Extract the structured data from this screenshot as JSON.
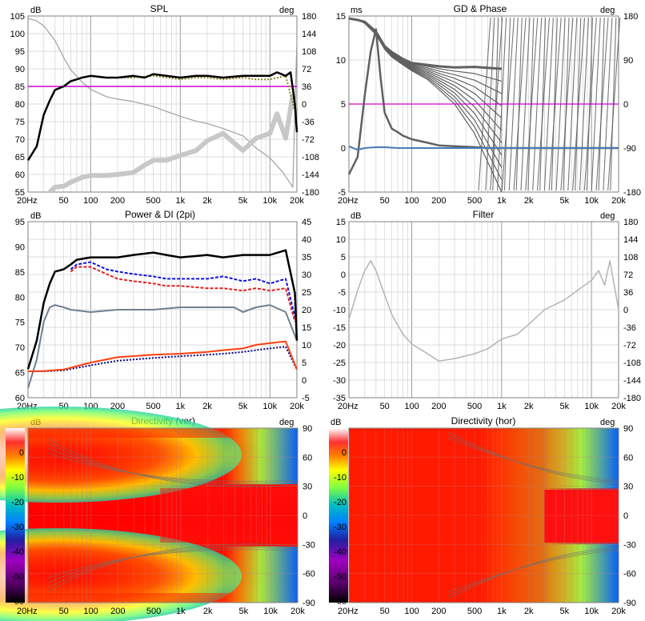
{
  "panels": [
    {
      "id": "spl",
      "title": "SPL",
      "left_unit": "dB",
      "right_unit": "deg",
      "left_ticks": [
        "105",
        "100",
        "95",
        "90",
        "85",
        "80",
        "75",
        "70",
        "65",
        "60",
        "55"
      ],
      "right_ticks": [
        "180",
        "144",
        "108",
        "72",
        "36",
        "0",
        "-36",
        "-72",
        "-108",
        "-144",
        "-180"
      ],
      "x_ticks": [
        "20Hz",
        "50",
        "100",
        "200",
        "500",
        "1k",
        "2k",
        "5k",
        "10k",
        "20k"
      ]
    },
    {
      "id": "gd-phase",
      "title": "GD & Phase",
      "left_unit": "ms",
      "right_unit": "deg",
      "left_ticks": [
        "15",
        "10",
        "5",
        "0",
        "-5"
      ],
      "right_ticks": [
        "180",
        "90",
        "0",
        "-90",
        "-180"
      ],
      "x_ticks": [
        "20Hz",
        "50",
        "100",
        "200",
        "500",
        "1k",
        "2k",
        "5k",
        "10k",
        "20k"
      ]
    },
    {
      "id": "power-di",
      "title": "Power & DI (2pi)",
      "left_unit": "dB",
      "right_unit": "",
      "left_ticks": [
        "95",
        "90",
        "85",
        "80",
        "75",
        "70",
        "65",
        "60"
      ],
      "right_ticks": [
        "45",
        "40",
        "35",
        "30",
        "25",
        "20",
        "15",
        "10",
        "5",
        "0",
        "-5"
      ],
      "x_ticks": [
        "20Hz",
        "50",
        "100",
        "200",
        "500",
        "1k",
        "2k",
        "5k",
        "10k",
        "20k"
      ]
    },
    {
      "id": "filter",
      "title": "Filter",
      "left_unit": "dB",
      "right_unit": "deg",
      "left_ticks": [
        "15",
        "10",
        "5",
        "0",
        "-5",
        "-10",
        "-15",
        "-20",
        "-25",
        "-30",
        "-35"
      ],
      "right_ticks": [
        "180",
        "144",
        "108",
        "72",
        "36",
        "0",
        "-36",
        "-72",
        "-108",
        "-144",
        "-180"
      ],
      "x_ticks": [
        "20Hz",
        "50",
        "100",
        "200",
        "500",
        "1k",
        "2k",
        "5k",
        "10k",
        "20k"
      ]
    },
    {
      "id": "directivity-ver",
      "title": "Directivity (ver)",
      "left_unit": "dB",
      "right_unit": "deg",
      "right_ticks": [
        "90",
        "60",
        "30",
        "0",
        "-30",
        "-60",
        "-90"
      ],
      "x_ticks": [
        "20Hz",
        "50",
        "100",
        "200",
        "500",
        "1k",
        "2k",
        "5k",
        "10k",
        "20k"
      ]
    },
    {
      "id": "directivity-hor",
      "title": "Directivity (hor)",
      "left_unit": "dB",
      "right_unit": "deg",
      "right_ticks": [
        "90",
        "60",
        "30",
        "0",
        "-30",
        "-60",
        "-90"
      ],
      "x_ticks": [
        "20Hz",
        "50",
        "100",
        "200",
        "500",
        "1k",
        "2k",
        "5k",
        "10k",
        "20k"
      ]
    }
  ],
  "colorbar": {
    "ticks": [
      "0",
      "-10",
      "-20",
      "-30",
      "-40",
      "-50",
      "-60"
    ]
  },
  "colors": {
    "spl": "#000000",
    "phase": "#a0a0a0",
    "target": "#d000d0",
    "excess_phase": "#c8c8c8",
    "group_delay": "#606060",
    "gd_flat": "#4a7ab8",
    "listening_window": "#1010e0",
    "early_reflections": "#e02020",
    "sound_power_di": "#ff4010",
    "early_reflections_di": "#000080",
    "di_grey": "#708090",
    "filter": "#b4b4b4"
  },
  "chart_data": [
    {
      "type": "line",
      "title": "SPL",
      "xscale": "log",
      "xlim": [
        20,
        20000
      ],
      "ylabel": "dB",
      "ylim": [
        55,
        105
      ],
      "y2label": "deg",
      "y2lim": [
        -180,
        180
      ],
      "series": [
        {
          "axis": "left",
          "x": [
            20,
            25,
            30,
            35,
            40,
            50,
            60,
            70,
            80,
            100,
            150,
            200,
            300,
            400,
            500,
            700,
            1000,
            1500,
            2000,
            3000,
            5000,
            7000,
            10000,
            12000,
            15000,
            17000,
            19000,
            20000
          ],
          "y": [
            64,
            68,
            77,
            81,
            84,
            85,
            86.5,
            87,
            87.5,
            88,
            87.5,
            87.5,
            88,
            87.5,
            88.5,
            88,
            87.5,
            88,
            88,
            87.5,
            88,
            88,
            88,
            89,
            88,
            89,
            80,
            72
          ]
        },
        {
          "axis": "left",
          "x": [
            20,
            20000
          ],
          "y": [
            85,
            85
          ]
        },
        {
          "axis": "left",
          "x": [
            200,
            300,
            500,
            700,
            1000,
            1500,
            2000,
            3000,
            5000,
            7000,
            10000,
            15000,
            19000
          ],
          "y": [
            87.5,
            87.5,
            88,
            87.5,
            87,
            87.5,
            87.5,
            87,
            87.5,
            87,
            87,
            88,
            78
          ]
        },
        {
          "axis": "right",
          "x": [
            20,
            25,
            30,
            40,
            50,
            60,
            80,
            100,
            150,
            200,
            300,
            500,
            700,
            1000,
            1500,
            2000,
            3000,
            5000,
            7000,
            10000,
            14000,
            18000,
            20000
          ],
          "y": [
            175,
            170,
            160,
            130,
            95,
            70,
            45,
            30,
            15,
            10,
            5,
            -5,
            -15,
            -25,
            -35,
            -40,
            -50,
            -65,
            -90,
            -110,
            -140,
            -170,
            130
          ]
        },
        {
          "axis": "right",
          "x": [
            35,
            40,
            50,
            60,
            80,
            100,
            150,
            200,
            300,
            400,
            500,
            700,
            1000,
            1500,
            2000,
            3000,
            5000,
            7000,
            10000,
            12000,
            15000,
            18000
          ],
          "y": [
            -180,
            -170,
            -168,
            -160,
            -150,
            -146,
            -146,
            -144,
            -140,
            -125,
            -115,
            -115,
            -105,
            -95,
            -75,
            -60,
            -95,
            -70,
            -60,
            -20,
            -70,
            20
          ]
        }
      ]
    },
    {
      "type": "line",
      "title": "GD & Phase",
      "xscale": "log",
      "xlim": [
        20,
        20000
      ],
      "ylabel": "ms",
      "ylim": [
        -5,
        15
      ],
      "y2label": "deg",
      "y2lim": [
        -180,
        180
      ],
      "series": [
        {
          "axis": "left",
          "x": [
            20,
            25,
            30,
            35,
            40,
            45,
            50,
            60,
            70,
            80,
            100,
            150,
            200,
            300,
            500,
            700,
            1000,
            1500,
            2000,
            3000,
            5000,
            7000,
            10000,
            15000,
            20000
          ],
          "y": [
            -3,
            -1,
            6,
            11,
            13.5,
            8,
            4,
            2.2,
            1.8,
            1.4,
            1,
            0.6,
            0.3,
            0.2,
            0.1,
            0,
            0,
            0,
            0,
            0,
            0,
            0,
            0,
            0,
            0
          ]
        },
        {
          "axis": "left",
          "x": [
            20,
            25,
            30,
            40,
            50,
            70,
            100,
            200,
            500,
            1000,
            2000,
            5000,
            10000,
            20000
          ],
          "y": [
            0.2,
            -0.2,
            0,
            0.1,
            0.1,
            0,
            0,
            0,
            0,
            0,
            0,
            0,
            0,
            0
          ]
        },
        {
          "axis": "left",
          "x": [
            20,
            20000
          ],
          "y": [
            5,
            5
          ]
        },
        {
          "axis": "right",
          "x": [
            20,
            25,
            30,
            40,
            50,
            60,
            80,
            100,
            150,
            200,
            300,
            500,
            1000
          ],
          "y": [
            175,
            172,
            168,
            148,
            118,
            106,
            92,
            84,
            80,
            77,
            75,
            76,
            72
          ]
        },
        {
          "axis": "right",
          "x": [
            20,
            25,
            30,
            40,
            50,
            60,
            80,
            100,
            150,
            200,
            300,
            500,
            1000
          ],
          "y": [
            175,
            172,
            165,
            142,
            112,
            96,
            80,
            68,
            50,
            30,
            0,
            -60,
            -180
          ]
        }
      ]
    },
    {
      "type": "line",
      "title": "Power & DI (2pi)",
      "xscale": "log",
      "xlim": [
        20,
        20000
      ],
      "ylabel": "dB",
      "ylim": [
        58,
        95
      ],
      "y2lim": [
        -5,
        45
      ],
      "series": [
        {
          "axis": "left",
          "x": [
            20,
            25,
            30,
            35,
            40,
            50,
            60,
            70,
            100,
            150,
            200,
            300,
            500,
            700,
            1000,
            2000,
            3000,
            5000,
            10000,
            15000,
            19000,
            20000
          ],
          "y": [
            64,
            70,
            78,
            82,
            84.5,
            85,
            86,
            87,
            87.5,
            87.5,
            87.5,
            88,
            88.5,
            88,
            87.5,
            88,
            87.5,
            88,
            88,
            89,
            80,
            70
          ]
        },
        {
          "axis": "left",
          "x": [
            60,
            70,
            100,
            150,
            200,
            300,
            500,
            700,
            1000,
            2000,
            3000,
            5000,
            7000,
            10000,
            15000,
            19000
          ],
          "y": [
            85,
            86,
            86.5,
            85,
            84.5,
            84,
            83.5,
            83,
            83,
            83,
            83.5,
            82.5,
            83,
            82,
            83,
            75
          ]
        },
        {
          "axis": "left",
          "x": [
            60,
            70,
            100,
            150,
            200,
            300,
            500,
            700,
            1000,
            2000,
            3000,
            5000,
            7000,
            10000,
            15000,
            19000
          ],
          "y": [
            84.5,
            85.5,
            85.5,
            84,
            83,
            82.5,
            82,
            81.5,
            81.5,
            81,
            81,
            80.5,
            81,
            80.5,
            81,
            74
          ]
        },
        {
          "axis": "left",
          "x": [
            20,
            25,
            30,
            35,
            40,
            50,
            60,
            100,
            200,
            500,
            1000,
            2000,
            4000,
            5000,
            7000,
            10000,
            15000,
            20000
          ],
          "y": [
            60,
            66,
            74,
            77,
            77.5,
            77,
            76.5,
            76,
            76.5,
            76.5,
            77,
            77,
            77,
            76,
            77,
            77.5,
            76,
            70
          ]
        },
        {
          "axis": "right",
          "x": [
            20,
            30,
            50,
            100,
            200,
            500,
            1000,
            2000,
            3000,
            5000,
            7000,
            10000,
            15000,
            20000
          ],
          "y": [
            2.5,
            2.6,
            3,
            5,
            6.5,
            7.2,
            7.5,
            8,
            8.5,
            9,
            10,
            10.5,
            11,
            3
          ]
        },
        {
          "axis": "right",
          "x": [
            20,
            30,
            50,
            100,
            200,
            500,
            1000,
            2000,
            3000,
            5000,
            7000,
            10000,
            15000,
            20000
          ],
          "y": [
            2.5,
            2.5,
            2.8,
            4.2,
            5.5,
            6.3,
            6.8,
            7.2,
            7.5,
            8,
            8.5,
            9,
            9.5,
            3
          ]
        }
      ]
    },
    {
      "type": "line",
      "title": "Filter",
      "xscale": "log",
      "xlim": [
        20,
        20000
      ],
      "ylabel": "dB",
      "ylim": [
        -35,
        15
      ],
      "y2label": "deg",
      "y2lim": [
        -180,
        180
      ],
      "series": [
        {
          "axis": "right",
          "x": [
            20,
            25,
            30,
            35,
            40,
            50,
            60,
            80,
            100,
            150,
            200,
            300,
            500,
            700,
            1000,
            1500,
            2000,
            3000,
            5000,
            7000,
            10000,
            12000,
            14000,
            16000,
            20000
          ],
          "y": [
            -20,
            40,
            80,
            100,
            80,
            30,
            -10,
            -50,
            -70,
            -90,
            -105,
            -100,
            -90,
            -80,
            -60,
            -50,
            -30,
            0,
            20,
            40,
            60,
            80,
            50,
            100,
            0
          ]
        }
      ]
    },
    {
      "type": "heatmap",
      "title": "Directivity (ver)",
      "xscale": "log",
      "xlim": [
        20,
        20000
      ],
      "ylabel": "deg",
      "ylim": [
        -90,
        90
      ],
      "zlabel": "dB",
      "zlim": [
        -60,
        0
      ]
    },
    {
      "type": "heatmap",
      "title": "Directivity (hor)",
      "xscale": "log",
      "xlim": [
        20,
        20000
      ],
      "ylabel": "deg",
      "ylim": [
        -90,
        90
      ],
      "zlabel": "dB",
      "zlim": [
        -60,
        0
      ]
    }
  ]
}
